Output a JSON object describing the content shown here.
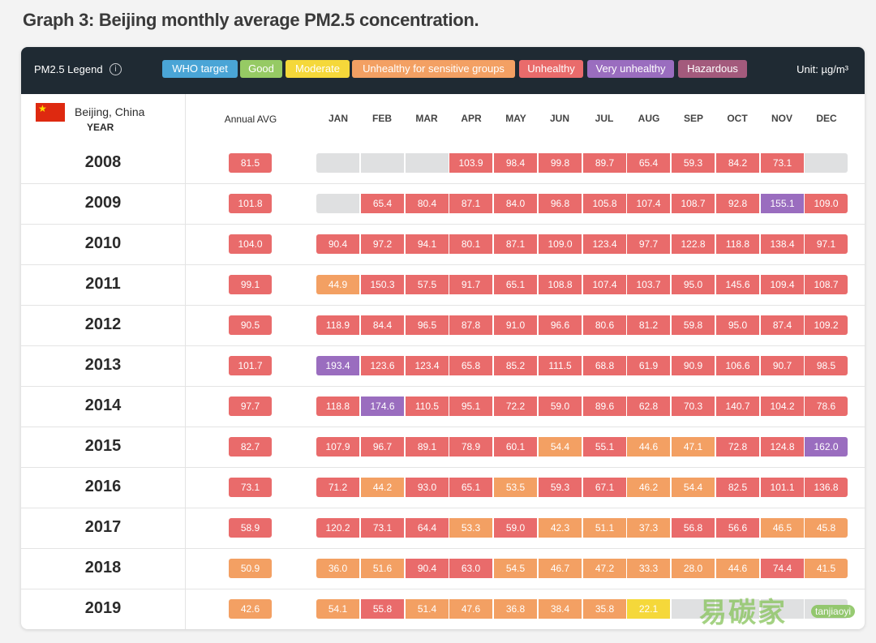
{
  "page": {
    "title": "Graph 3: Beijing monthly average PM2.5 concentration."
  },
  "legend": {
    "label": "PM2.5 Legend",
    "info_icon": "info-icon",
    "unit": "Unit: µg/m³",
    "items": [
      {
        "key": "who",
        "label": "WHO target",
        "color": "#4aa5d6"
      },
      {
        "key": "good",
        "label": "Good",
        "color": "#96ca64"
      },
      {
        "key": "moderate",
        "label": "Moderate",
        "color": "#f5d83a"
      },
      {
        "key": "usg",
        "label": "Unhealthy for sensitive groups",
        "color": "#f3a063"
      },
      {
        "key": "unhealthy",
        "label": "Unhealthy",
        "color": "#e96b6b"
      },
      {
        "key": "very",
        "label": "Very unhealthy",
        "color": "#9a6dbf"
      },
      {
        "key": "hazardous",
        "label": "Hazardous",
        "color": "#a35a7c"
      }
    ]
  },
  "colors": {
    "no_data": "#dfe0e1",
    "moderate": "#f5d83a",
    "usg": "#f3a063",
    "unhealthy": "#e96b6b",
    "very": "#9a6dbf"
  },
  "header": {
    "city": "Beijing, China",
    "flag_icon": "china-flag-icon",
    "year": "YEAR",
    "annual": "Annual AVG",
    "months": [
      "JAN",
      "FEB",
      "MAR",
      "APR",
      "MAY",
      "JUN",
      "JUL",
      "AUG",
      "SEP",
      "OCT",
      "NOV",
      "DEC"
    ]
  },
  "watermark": {
    "text": "易碳家",
    "sub": "tanjiaoyi"
  },
  "chart_data": {
    "type": "table",
    "title": "Graph 3: Beijing monthly average PM2.5 concentration.",
    "unit": "µg/m³",
    "columns": [
      "JAN",
      "FEB",
      "MAR",
      "APR",
      "MAY",
      "JUN",
      "JUL",
      "AUG",
      "SEP",
      "OCT",
      "NOV",
      "DEC"
    ],
    "rows": [
      {
        "year": "2008",
        "annual": 81.5,
        "annual_cat": "unhealthy",
        "values": [
          null,
          null,
          null,
          103.9,
          98.4,
          99.8,
          89.7,
          65.4,
          59.3,
          84.2,
          73.1,
          null
        ],
        "cats": [
          null,
          null,
          null,
          "unhealthy",
          "unhealthy",
          "unhealthy",
          "unhealthy",
          "unhealthy",
          "unhealthy",
          "unhealthy",
          "unhealthy",
          null
        ]
      },
      {
        "year": "2009",
        "annual": 101.8,
        "annual_cat": "unhealthy",
        "values": [
          null,
          65.4,
          80.4,
          87.1,
          84.0,
          96.8,
          105.8,
          107.4,
          108.7,
          92.8,
          155.1,
          109.0
        ],
        "cats": [
          null,
          "unhealthy",
          "unhealthy",
          "unhealthy",
          "unhealthy",
          "unhealthy",
          "unhealthy",
          "unhealthy",
          "unhealthy",
          "unhealthy",
          "very",
          "unhealthy"
        ]
      },
      {
        "year": "2010",
        "annual": 104.0,
        "annual_cat": "unhealthy",
        "values": [
          90.4,
          97.2,
          94.1,
          80.1,
          87.1,
          109.0,
          123.4,
          97.7,
          122.8,
          118.8,
          138.4,
          97.1
        ],
        "cats": [
          "unhealthy",
          "unhealthy",
          "unhealthy",
          "unhealthy",
          "unhealthy",
          "unhealthy",
          "unhealthy",
          "unhealthy",
          "unhealthy",
          "unhealthy",
          "unhealthy",
          "unhealthy"
        ]
      },
      {
        "year": "2011",
        "annual": 99.1,
        "annual_cat": "unhealthy",
        "values": [
          44.9,
          150.3,
          57.5,
          91.7,
          65.1,
          108.8,
          107.4,
          103.7,
          95.0,
          145.6,
          109.4,
          108.7
        ],
        "cats": [
          "usg",
          "unhealthy",
          "unhealthy",
          "unhealthy",
          "unhealthy",
          "unhealthy",
          "unhealthy",
          "unhealthy",
          "unhealthy",
          "unhealthy",
          "unhealthy",
          "unhealthy"
        ]
      },
      {
        "year": "2012",
        "annual": 90.5,
        "annual_cat": "unhealthy",
        "values": [
          118.9,
          84.4,
          96.5,
          87.8,
          91.0,
          96.6,
          80.6,
          81.2,
          59.8,
          95.0,
          87.4,
          109.2
        ],
        "cats": [
          "unhealthy",
          "unhealthy",
          "unhealthy",
          "unhealthy",
          "unhealthy",
          "unhealthy",
          "unhealthy",
          "unhealthy",
          "unhealthy",
          "unhealthy",
          "unhealthy",
          "unhealthy"
        ]
      },
      {
        "year": "2013",
        "annual": 101.7,
        "annual_cat": "unhealthy",
        "values": [
          193.4,
          123.6,
          123.4,
          65.8,
          85.2,
          111.5,
          68.8,
          61.9,
          90.9,
          106.6,
          90.7,
          98.5
        ],
        "cats": [
          "very",
          "unhealthy",
          "unhealthy",
          "unhealthy",
          "unhealthy",
          "unhealthy",
          "unhealthy",
          "unhealthy",
          "unhealthy",
          "unhealthy",
          "unhealthy",
          "unhealthy"
        ]
      },
      {
        "year": "2014",
        "annual": 97.7,
        "annual_cat": "unhealthy",
        "values": [
          118.8,
          174.6,
          110.5,
          95.1,
          72.2,
          59.0,
          89.6,
          62.8,
          70.3,
          140.7,
          104.2,
          78.6
        ],
        "cats": [
          "unhealthy",
          "very",
          "unhealthy",
          "unhealthy",
          "unhealthy",
          "unhealthy",
          "unhealthy",
          "unhealthy",
          "unhealthy",
          "unhealthy",
          "unhealthy",
          "unhealthy"
        ]
      },
      {
        "year": "2015",
        "annual": 82.7,
        "annual_cat": "unhealthy",
        "values": [
          107.9,
          96.7,
          89.1,
          78.9,
          60.1,
          54.4,
          55.1,
          44.6,
          47.1,
          72.8,
          124.8,
          162.0
        ],
        "cats": [
          "unhealthy",
          "unhealthy",
          "unhealthy",
          "unhealthy",
          "unhealthy",
          "usg",
          "unhealthy",
          "usg",
          "usg",
          "unhealthy",
          "unhealthy",
          "very"
        ]
      },
      {
        "year": "2016",
        "annual": 73.1,
        "annual_cat": "unhealthy",
        "values": [
          71.2,
          44.2,
          93.0,
          65.1,
          53.5,
          59.3,
          67.1,
          46.2,
          54.4,
          82.5,
          101.1,
          136.8
        ],
        "cats": [
          "unhealthy",
          "usg",
          "unhealthy",
          "unhealthy",
          "usg",
          "unhealthy",
          "unhealthy",
          "usg",
          "usg",
          "unhealthy",
          "unhealthy",
          "unhealthy"
        ]
      },
      {
        "year": "2017",
        "annual": 58.9,
        "annual_cat": "unhealthy",
        "values": [
          120.2,
          73.1,
          64.4,
          53.3,
          59.0,
          42.3,
          51.1,
          37.3,
          56.8,
          56.6,
          46.5,
          45.8
        ],
        "cats": [
          "unhealthy",
          "unhealthy",
          "unhealthy",
          "usg",
          "unhealthy",
          "usg",
          "usg",
          "usg",
          "unhealthy",
          "unhealthy",
          "usg",
          "usg"
        ]
      },
      {
        "year": "2018",
        "annual": 50.9,
        "annual_cat": "usg",
        "values": [
          36.0,
          51.6,
          90.4,
          63.0,
          54.5,
          46.7,
          47.2,
          33.3,
          28.0,
          44.6,
          74.4,
          41.5
        ],
        "cats": [
          "usg",
          "usg",
          "unhealthy",
          "unhealthy",
          "usg",
          "usg",
          "usg",
          "usg",
          "usg",
          "usg",
          "unhealthy",
          "usg"
        ]
      },
      {
        "year": "2019",
        "annual": 42.6,
        "annual_cat": "usg",
        "values": [
          54.1,
          55.8,
          51.4,
          47.6,
          36.8,
          38.4,
          35.8,
          22.1,
          null,
          null,
          null,
          null
        ],
        "cats": [
          "usg",
          "unhealthy",
          "usg",
          "usg",
          "usg",
          "usg",
          "usg",
          "moderate",
          null,
          null,
          null,
          null
        ]
      }
    ]
  }
}
